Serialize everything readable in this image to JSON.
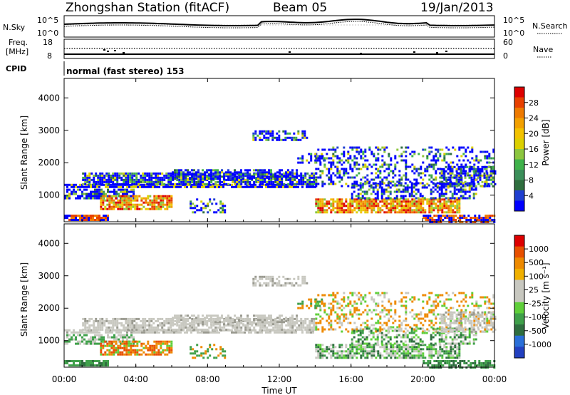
{
  "header": {
    "title": "Zhongshan Station (fitACF)",
    "beam": "Beam 05",
    "date": "19/Jan/2013"
  },
  "panels": {
    "nsky_label": "N.Sky",
    "nsearch_label": "N.Search",
    "nsky_ticks": [
      "10^5",
      "10^0"
    ],
    "nsearch_ticks": [
      "10^5",
      "10^0"
    ],
    "freq_label_1": "Freq.",
    "freq_label_2": "[MHz]",
    "freq_ticks": [
      "18",
      "8"
    ],
    "nave_label": "Nave",
    "nave_ticks": [
      "60",
      "0"
    ],
    "cpid_label": "CPID",
    "cpid_text": "normal (fast stereo) 153"
  },
  "chart_data": [
    {
      "type": "heatmap",
      "title": "",
      "ylabel": "Slant Range [km]",
      "xlabel": "",
      "ylim": [
        180,
        4600
      ],
      "yticks": [
        "4000",
        "3000",
        "2000",
        "1000"
      ],
      "colorbar_label": "Power [dB]",
      "colorbar_ticks": [
        "28",
        "24",
        "20",
        "16",
        "12",
        "8",
        "4"
      ],
      "colorbar_colors": [
        "#0000ff",
        "#1f3fd0",
        "#2f6e3f",
        "#3b8f5a",
        "#3fb24a",
        "#8cc63f",
        "#dcd000",
        "#f2c200",
        "#f2a000",
        "#ee7a00",
        "#e84000",
        "#dd0000"
      ],
      "scale_range": [
        0,
        32
      ],
      "grid": false
    },
    {
      "type": "heatmap",
      "title": "",
      "ylabel": "Slant Range [km]",
      "xlabel": "Time UT",
      "ylim": [
        180,
        4600
      ],
      "yticks": [
        "4000",
        "3000",
        "2000",
        "1000"
      ],
      "xticks": [
        "00:00",
        "04:00",
        "08:00",
        "12:00",
        "16:00",
        "20:00",
        "00:00"
      ],
      "colorbar_label": "Velocity [m s⁻¹]",
      "colorbar_ticks": [
        "1000",
        "500",
        "100",
        "25",
        "-25",
        "-100",
        "-500",
        "-1000"
      ],
      "colorbar_colors": [
        "#2240c0",
        "#2a6fd8",
        "#2f6e3f",
        "#3fa04a",
        "#5fcf3a",
        "#c8c8c0",
        "#c8c8c0",
        "#f0b000",
        "#ee8a00",
        "#e85000",
        "#dd0000"
      ],
      "grid": false
    }
  ]
}
